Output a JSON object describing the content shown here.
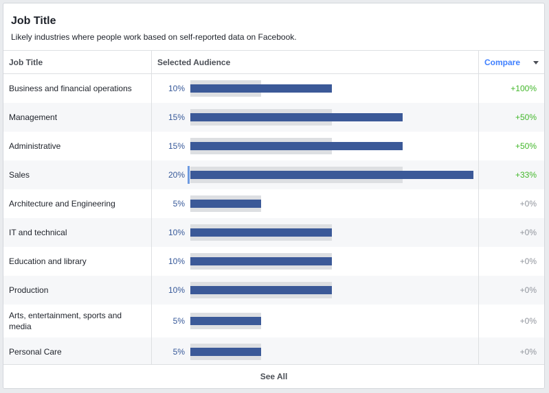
{
  "card": {
    "title": "Job Title",
    "subtitle": "Likely industries where people work based on self-reported data on Facebook."
  },
  "table": {
    "headers": {
      "job_title": "Job Title",
      "selected_audience": "Selected Audience",
      "compare": "Compare"
    },
    "rows": [
      {
        "label": "Business and financial operations",
        "pct": "10%",
        "selected": 10,
        "baseline": 5,
        "compare": "+100%",
        "trend": "pos"
      },
      {
        "label": "Management",
        "pct": "15%",
        "selected": 15,
        "baseline": 10,
        "compare": "+50%",
        "trend": "pos"
      },
      {
        "label": "Administrative",
        "pct": "15%",
        "selected": 15,
        "baseline": 10,
        "compare": "+50%",
        "trend": "pos"
      },
      {
        "label": "Sales",
        "pct": "20%",
        "selected": 20,
        "baseline": 15,
        "compare": "+33%",
        "trend": "pos"
      },
      {
        "label": "Architecture and Engineering",
        "pct": "5%",
        "selected": 5,
        "baseline": 5,
        "compare": "+0%",
        "trend": "neu"
      },
      {
        "label": "IT and technical",
        "pct": "10%",
        "selected": 10,
        "baseline": 10,
        "compare": "+0%",
        "trend": "neu"
      },
      {
        "label": "Education and library",
        "pct": "10%",
        "selected": 10,
        "baseline": 10,
        "compare": "+0%",
        "trend": "neu"
      },
      {
        "label": "Production",
        "pct": "10%",
        "selected": 10,
        "baseline": 10,
        "compare": "+0%",
        "trend": "neu"
      },
      {
        "label": "Arts, entertainment, sports and media",
        "pct": "5%",
        "selected": 5,
        "baseline": 5,
        "compare": "+0%",
        "trend": "neu"
      },
      {
        "label": "Personal Care",
        "pct": "5%",
        "selected": 5,
        "baseline": 5,
        "compare": "+0%",
        "trend": "neu"
      }
    ]
  },
  "footer": {
    "see_all": "See All"
  },
  "colors": {
    "bar_selected": "#3b5998",
    "bar_baseline": "#dddfe2",
    "positive": "#42b72a",
    "neutral": "#90949c",
    "link": "#4080ff"
  },
  "icons": {
    "compare_dropdown": "caret-down-icon"
  }
}
